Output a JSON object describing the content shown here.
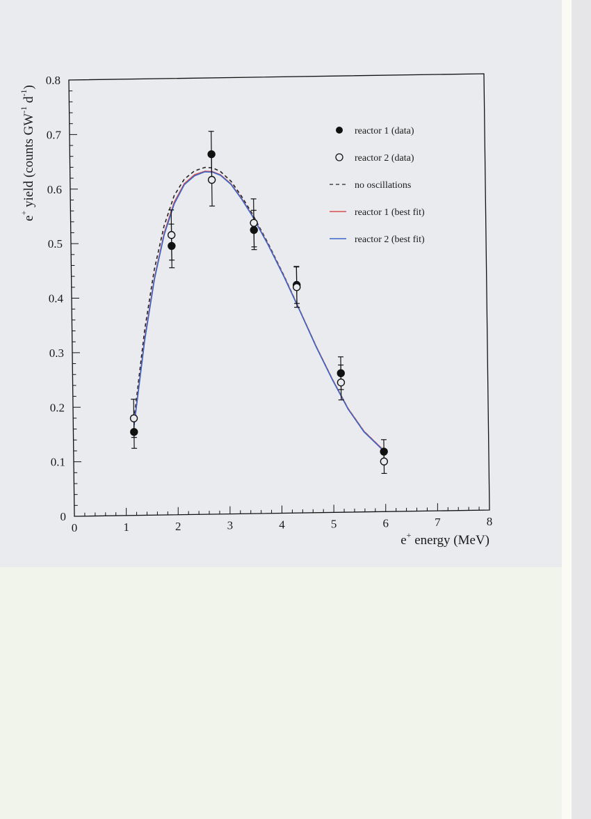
{
  "chart_data": {
    "type": "scatter",
    "xlabel_base": "e",
    "xlabel_sup": "+",
    "xlabel_rest": " energy (MeV)",
    "ylabel_base": "e",
    "ylabel_sup": "+",
    "ylabel_mid": " yield (counts GW",
    "ylabel_sup2": "-1",
    "ylabel_mid2": " d",
    "ylabel_sup3": "-1",
    "ylabel_end": ")",
    "xlim": [
      0,
      8
    ],
    "ylim": [
      0,
      0.8
    ],
    "x_ticks": [
      "0",
      "1",
      "2",
      "3",
      "4",
      "5",
      "6",
      "7",
      "8"
    ],
    "y_ticks": [
      "0",
      "0.1",
      "0.2",
      "0.3",
      "0.4",
      "0.5",
      "0.6",
      "0.7",
      "0.8"
    ],
    "grid": false,
    "legend_position": "top-right",
    "series": [
      {
        "name": "reactor 1 (data)",
        "marker": "filled-circle",
        "points": [
          {
            "x": 1.17,
            "y": 0.153,
            "err": 0.03
          },
          {
            "x": 1.94,
            "y": 0.493,
            "err": 0.04
          },
          {
            "x": 2.73,
            "y": 0.66,
            "err": 0.042
          },
          {
            "x": 3.53,
            "y": 0.52,
            "err": 0.036
          },
          {
            "x": 4.34,
            "y": 0.418,
            "err": 0.034
          },
          {
            "x": 5.17,
            "y": 0.255,
            "err": 0.03
          },
          {
            "x": 5.98,
            "y": 0.11,
            "err": 0.022
          }
        ]
      },
      {
        "name": "reactor 2 (data)",
        "marker": "open-circle",
        "points": [
          {
            "x": 1.17,
            "y": 0.178,
            "err": 0.035
          },
          {
            "x": 1.94,
            "y": 0.513,
            "err": 0.046
          },
          {
            "x": 2.73,
            "y": 0.613,
            "err": 0.048
          },
          {
            "x": 3.53,
            "y": 0.533,
            "err": 0.044
          },
          {
            "x": 4.34,
            "y": 0.414,
            "err": 0.037
          },
          {
            "x": 5.17,
            "y": 0.238,
            "err": 0.032
          },
          {
            "x": 5.98,
            "y": 0.092,
            "err": 0.022
          }
        ]
      },
      {
        "name": "no oscillations",
        "style": "dashed",
        "color": "#222222",
        "x": [
          1.17,
          1.4,
          1.6,
          1.8,
          2.0,
          2.2,
          2.4,
          2.6,
          2.75,
          2.9,
          3.1,
          3.3,
          3.5,
          3.8,
          4.1,
          4.4,
          4.7,
          5.0,
          5.3,
          5.6,
          5.98
        ],
        "y": [
          0.175,
          0.34,
          0.45,
          0.53,
          0.585,
          0.615,
          0.63,
          0.636,
          0.635,
          0.628,
          0.61,
          0.582,
          0.55,
          0.495,
          0.435,
          0.37,
          0.305,
          0.245,
          0.19,
          0.148,
          0.112
        ]
      },
      {
        "name": "reactor 1 (best fit)",
        "style": "solid",
        "color": "#d94c4c",
        "x": [
          1.17,
          1.4,
          1.6,
          1.8,
          2.0,
          2.2,
          2.4,
          2.6,
          2.75,
          2.9,
          3.1,
          3.3,
          3.5,
          3.8,
          4.1,
          4.4,
          4.7,
          5.0,
          5.3,
          5.6,
          5.98
        ],
        "y": [
          0.165,
          0.325,
          0.435,
          0.517,
          0.573,
          0.607,
          0.623,
          0.629,
          0.628,
          0.622,
          0.605,
          0.578,
          0.547,
          0.493,
          0.434,
          0.37,
          0.305,
          0.245,
          0.19,
          0.148,
          0.112
        ]
      },
      {
        "name": "reactor 2 (best fit)",
        "style": "solid",
        "color": "#3a66c8",
        "x": [
          1.17,
          1.4,
          1.6,
          1.8,
          2.0,
          2.2,
          2.4,
          2.6,
          2.75,
          2.9,
          3.1,
          3.3,
          3.5,
          3.8,
          4.1,
          4.4,
          4.7,
          5.0,
          5.3,
          5.6,
          5.98
        ],
        "y": [
          0.163,
          0.322,
          0.432,
          0.514,
          0.57,
          0.605,
          0.621,
          0.628,
          0.627,
          0.621,
          0.604,
          0.577,
          0.546,
          0.492,
          0.433,
          0.369,
          0.304,
          0.244,
          0.189,
          0.147,
          0.111
        ]
      }
    ]
  }
}
